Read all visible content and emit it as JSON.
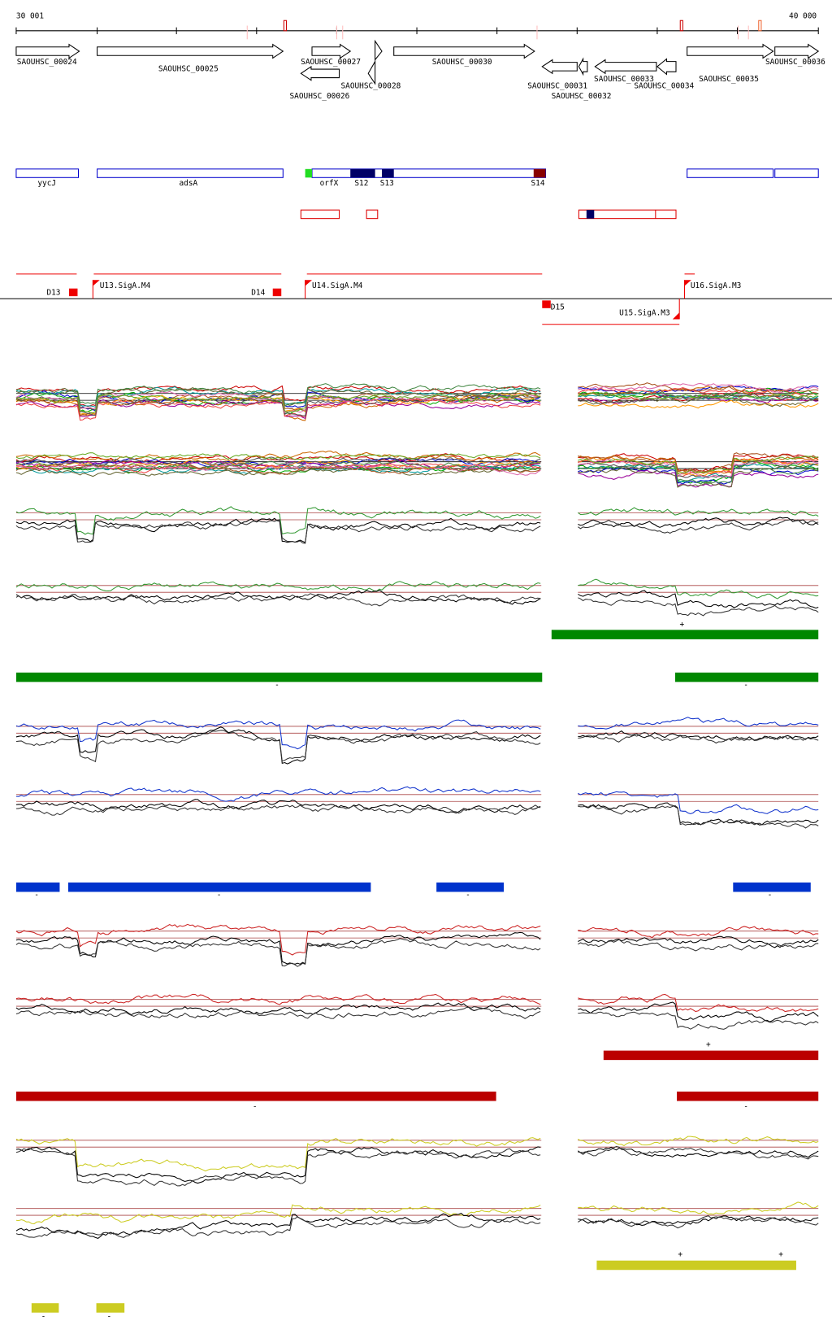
{
  "ruler": {
    "start": "30 001",
    "end": "40 000"
  },
  "genes": [
    "SAOUHSC_00024",
    "SAOUHSC_00025",
    "SAOUHSC_00027",
    "SAOUHSC_00026",
    "SAOUHSC_00028",
    "SAOUHSC_00030",
    "SAOUHSC_00031",
    "SAOUHSC_00032",
    "SAOUHSC_00033",
    "SAOUHSC_00034",
    "SAOUHSC_00035",
    "SAOUHSC_00036"
  ],
  "annotations": [
    "yycJ",
    "adsA",
    "orfX",
    "S12",
    "S13",
    "S14"
  ],
  "promoters": [
    "D13",
    "U13.SigA.M4",
    "D14",
    "U14.SigA.M4",
    "D15",
    "U15.SigA.M3",
    "U16.SigA.M3"
  ],
  "segment_signs": [
    "+",
    "-",
    "-",
    "-",
    "-",
    "-",
    "-",
    "+",
    "-",
    "-",
    "+",
    "+",
    "-",
    "-"
  ]
}
